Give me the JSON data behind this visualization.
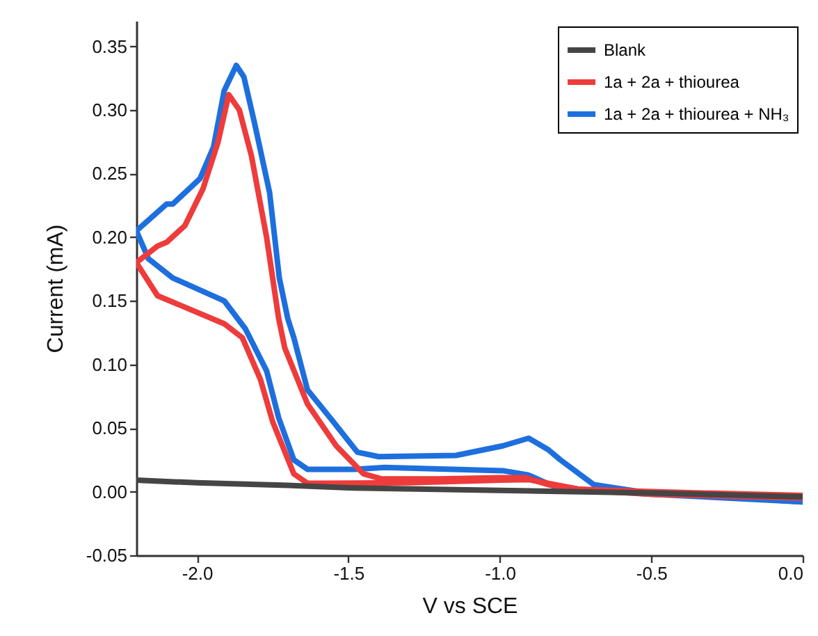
{
  "chart_data": {
    "type": "line",
    "xlabel": "V vs SCE",
    "ylabel": "Current (mA)",
    "xlim": [
      -2.2,
      0
    ],
    "ylim": [
      -0.05,
      0.37
    ],
    "xticks": [
      {
        "value": -2,
        "label": "-2.0"
      },
      {
        "value": -1.5,
        "label": "-1.5"
      },
      {
        "value": -1,
        "label": "-1.0"
      },
      {
        "value": -0.5,
        "label": "-0.5"
      },
      {
        "value": 0,
        "label": "0.0"
      }
    ],
    "yticks": [
      {
        "value": -0.05,
        "label": "-0.05"
      },
      {
        "value": 0,
        "label": "0.00"
      },
      {
        "value": 0.05,
        "label": "0.05"
      },
      {
        "value": 0.1,
        "label": "0.10"
      },
      {
        "value": 0.15,
        "label": "0.15"
      },
      {
        "value": 0.2,
        "label": "0.20"
      },
      {
        "value": 0.25,
        "label": "0.25"
      },
      {
        "value": 0.3,
        "label": "0.30"
      },
      {
        "value": 0.35,
        "label": "0.35"
      }
    ],
    "grid": false,
    "legend": "top right",
    "line_style": "solid",
    "marker": "none",
    "series": [
      {
        "name": "Blank",
        "color": "#454545",
        "x": [
          -2.2,
          -2.0,
          -1.7,
          -1.5,
          -1.0,
          -0.5,
          0
        ],
        "values": [
          0.009,
          0.007,
          0.005,
          0.003,
          0.001,
          -0.001,
          -0.004
        ]
      },
      {
        "name": "1a + 2a + thiourea",
        "color": "#ee3b3b",
        "x": [
          -2.2,
          -2.13,
          -2.1,
          -2.04,
          -1.98,
          -1.93,
          -1.895,
          -1.86,
          -1.82,
          -1.77,
          -1.73,
          -1.71,
          -1.635,
          -1.54,
          -1.45,
          -1.39,
          -1.2,
          -1.0,
          -0.915,
          -0.84,
          -0.74,
          -0.5,
          0
        ],
        "values": [
          0.18,
          0.193,
          0.196,
          0.209,
          0.238,
          0.275,
          0.312,
          0.3,
          0.264,
          0.2,
          0.136,
          0.113,
          0.069,
          0.036,
          0.014,
          0.01,
          0.01,
          0.011,
          0.011,
          0.0055,
          0.002,
          0.0,
          -0.003
        ]
      },
      {
        "color": "#ee3b3b",
        "x": [
          0,
          -0.5,
          -0.72,
          -0.905,
          -1.0,
          -1.3,
          -1.6,
          -1.635,
          -1.68,
          -1.75,
          -1.79,
          -1.85,
          -1.91,
          -2.13,
          -2.2
        ],
        "values": [
          -0.005,
          -0.002,
          0.001,
          0.0095,
          0.009,
          0.007,
          0.0066,
          0.0066,
          0.014,
          0.055,
          0.088,
          0.121,
          0.132,
          0.154,
          0.18
        ]
      },
      {
        "name": "1a + 2a + thiourea + NH₃",
        "color": "#1e6fde",
        "x": [
          -2.2,
          -2.1,
          -2.08,
          -1.99,
          -1.945,
          -1.91,
          -1.87,
          -1.845,
          -1.81,
          -1.76,
          -1.728,
          -1.7,
          -1.68,
          -1.635,
          -1.56,
          -1.47,
          -1.4,
          -1.145,
          -0.99,
          -0.905,
          -0.84,
          -0.8,
          -0.69,
          -0.54,
          0
        ],
        "values": [
          0.205,
          0.226,
          0.226,
          0.246,
          0.271,
          0.315,
          0.335,
          0.326,
          0.29,
          0.235,
          0.168,
          0.136,
          0.121,
          0.08,
          0.058,
          0.031,
          0.0275,
          0.0285,
          0.036,
          0.042,
          0.033,
          0.025,
          0.0055,
          0.0,
          -0.008
        ]
      },
      {
        "color": "#1e6fde",
        "x": [
          0,
          -0.5,
          -0.81,
          -0.905,
          -0.99,
          -1.38,
          -1.48,
          -1.635,
          -1.68,
          -1.73,
          -1.77,
          -1.84,
          -1.91,
          -2.08,
          -2.16,
          -2.2
        ],
        "values": [
          -0.008,
          -0.002,
          0.003,
          0.013,
          0.0165,
          0.019,
          0.0176,
          0.0176,
          0.025,
          0.058,
          0.095,
          0.128,
          0.15,
          0.168,
          0.183,
          0.205
        ]
      }
    ]
  }
}
